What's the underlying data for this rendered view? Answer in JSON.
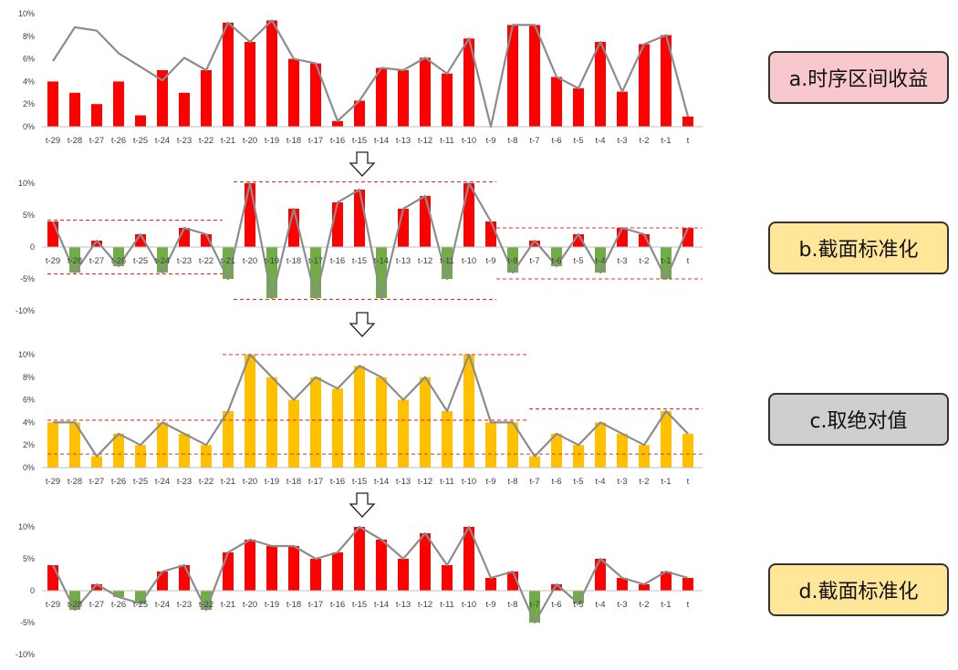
{
  "colors": {
    "positive": "#ff0000",
    "negative": "#70ad47",
    "absolute": "#ffc000",
    "line": "#8c8c8c",
    "guide": "#e03030",
    "axis": "#bfbfbf"
  },
  "categories": [
    "t-29",
    "t-28",
    "t-27",
    "t-26",
    "t-25",
    "t-24",
    "t-23",
    "t-22",
    "t-21",
    "t-20",
    "t-19",
    "t-18",
    "t-17",
    "t-16",
    "t-15",
    "t-14",
    "t-13",
    "t-12",
    "t-11",
    "t-10",
    "t-9",
    "t-8",
    "t-7",
    "t-6",
    "t-5",
    "t-4",
    "t-3",
    "t-2",
    "t-1",
    "t"
  ],
  "steps": [
    {
      "label": "a.时序区间收益",
      "fill": "#f8c8cc"
    },
    {
      "label": "b.截面标准化",
      "fill": "#ffe699"
    },
    {
      "label": "c.取绝对值",
      "fill": "#d0cece"
    },
    {
      "label": "d.截面标准化",
      "fill": "#ffe699"
    }
  ],
  "chart_data": [
    {
      "type": "bar",
      "ylim": [
        0,
        10
      ],
      "yticks": [
        0,
        2,
        4,
        6,
        8,
        10
      ],
      "ytick_labels": [
        "0%",
        "2%",
        "4%",
        "6%",
        "8%",
        "10%"
      ],
      "bars": [
        4,
        3,
        2,
        4,
        1,
        5,
        3,
        5,
        9.2,
        7.5,
        9.4,
        6,
        5.6,
        0.5,
        2.3,
        5.2,
        5,
        6.1,
        4.7,
        7.8,
        0,
        9,
        9,
        4.4,
        3.4,
        7.5,
        3.1,
        7.3,
        8.1,
        0.9
      ],
      "line": [
        5.8,
        8.8,
        8.5,
        6.5,
        5.3,
        4.1,
        6.1,
        5,
        9.2,
        7.5,
        9.4,
        6,
        5.6,
        0.5,
        2.3,
        5.2,
        5,
        6.1,
        4.7,
        7.8,
        0,
        9,
        9,
        4.4,
        3.4,
        7.5,
        3.1,
        7.3,
        8.1,
        0.9
      ]
    },
    {
      "type": "bar",
      "ylim": [
        -10,
        10
      ],
      "yticks": [
        -10,
        -5,
        0,
        5,
        10
      ],
      "ytick_labels": [
        "-10%",
        "-5%",
        "0",
        "5%",
        "10%"
      ],
      "bars": [
        4,
        -4,
        1,
        -3,
        2,
        -4,
        3,
        2,
        -5,
        10,
        -8,
        6,
        -8,
        7,
        9,
        -8,
        6,
        8,
        -5,
        10,
        4,
        -4,
        1,
        -3,
        2,
        -4,
        3,
        2,
        -5,
        3
      ],
      "line": [
        4,
        -4,
        1,
        -3,
        2,
        -4,
        3,
        2,
        -5,
        10,
        -8,
        6,
        -8,
        7,
        9,
        -8,
        6,
        8,
        -5,
        10,
        4,
        -4,
        1,
        -3,
        2,
        -4,
        3,
        2,
        -5,
        3
      ],
      "guides": [
        {
          "i0": 0,
          "i1": 7.5,
          "y": 4.2
        },
        {
          "i0": 0,
          "i1": 7.5,
          "y": -4.2
        },
        {
          "i0": 8.5,
          "i1": 20,
          "y": 10.2
        },
        {
          "i0": 8.5,
          "i1": 20,
          "y": -8.2
        },
        {
          "i0": 20.5,
          "i1": 29.4,
          "y": 3
        },
        {
          "i0": 20.5,
          "i1": 29.4,
          "y": -5
        }
      ]
    },
    {
      "type": "bar",
      "ylim": [
        0,
        10
      ],
      "yticks": [
        0,
        2,
        4,
        6,
        8,
        10
      ],
      "ytick_labels": [
        "0%",
        "2%",
        "4%",
        "6%",
        "8%",
        "10%"
      ],
      "bars": [
        4,
        4,
        1,
        3,
        2,
        4,
        3,
        2,
        5,
        10,
        8,
        6,
        8,
        7,
        9,
        8,
        6,
        8,
        5,
        10,
        4,
        4,
        1,
        3,
        2,
        4,
        3,
        2,
        5,
        3
      ],
      "line": [
        4,
        4,
        1,
        3,
        2,
        4,
        3,
        2,
        5,
        10,
        8,
        6,
        8,
        7,
        9,
        8,
        6,
        8,
        5,
        10,
        4,
        4,
        1,
        3,
        2,
        4,
        3,
        2,
        5,
        3
      ],
      "guides": [
        {
          "i0": 0,
          "i1": 7.5,
          "y": 4.2
        },
        {
          "i0": 0,
          "i1": 29.4,
          "y": 1.2
        },
        {
          "i0": 8,
          "i1": 21.5,
          "y": 10
        },
        {
          "i0": 8,
          "i1": 21.5,
          "y": 4.2
        },
        {
          "i0": 22,
          "i1": 29.4,
          "y": 5.2
        }
      ]
    },
    {
      "type": "bar",
      "ylim": [
        -10,
        10
      ],
      "yticks": [
        -10,
        -5,
        0,
        5,
        10
      ],
      "ytick_labels": [
        "-10%",
        "-5%",
        "0",
        "5%",
        "10%"
      ],
      "bars": [
        4,
        -3,
        1,
        -1,
        -2,
        3,
        4,
        -3,
        6,
        8,
        7,
        7,
        5,
        6,
        10,
        8,
        5,
        9,
        4,
        10,
        2,
        3,
        -5,
        1,
        -2,
        5,
        2,
        1,
        3,
        2
      ],
      "line": [
        4,
        -3,
        1,
        -1,
        -2,
        3,
        4,
        -3,
        6,
        8,
        7,
        7,
        5,
        6,
        10,
        8,
        5,
        9,
        4,
        10,
        2,
        3,
        -5,
        1,
        -2,
        5,
        2,
        1,
        3,
        2
      ]
    }
  ]
}
